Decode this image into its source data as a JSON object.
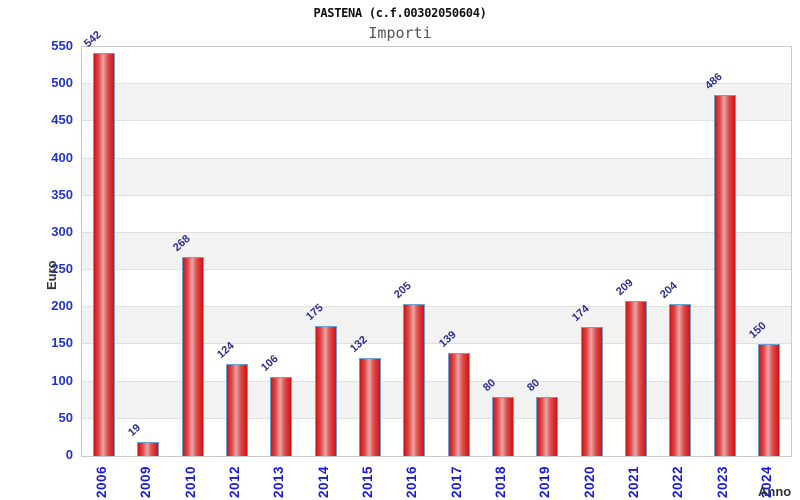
{
  "chart_data": {
    "type": "bar",
    "title": "PASTENA (c.f.00302050604)",
    "subtitle": "Importi",
    "xlabel": "Anno",
    "ylabel": "Euro",
    "categories": [
      "2006",
      "2009",
      "2010",
      "2012",
      "2013",
      "2014",
      "2015",
      "2016",
      "2017",
      "2018",
      "2019",
      "2020",
      "2021",
      "2022",
      "2023",
      "2024"
    ],
    "values": [
      542,
      19,
      268,
      124,
      106,
      175,
      132,
      205,
      139,
      80,
      80,
      174,
      209,
      204,
      486,
      150
    ],
    "ylim": [
      0,
      550
    ],
    "ytick_step": 50,
    "legend": "none",
    "grid": "alternating horizontal bands every 50, light gridlines",
    "colors": {
      "bar_fill_edge": "#d21212",
      "bar_fill_light": "#eca4a4",
      "bar_border": "#6b9fd6",
      "y_tick_label": "#2233cc",
      "x_tick_label": "#1a1ad9",
      "value_label": "#2e2e8e",
      "axis_title": "#333333",
      "band_gray": "#f2f2f2",
      "gridline": "#e0e0e0",
      "plot_border": "#cbcbcb",
      "title_color": "#111111",
      "subtitle_color": "#555555"
    }
  }
}
